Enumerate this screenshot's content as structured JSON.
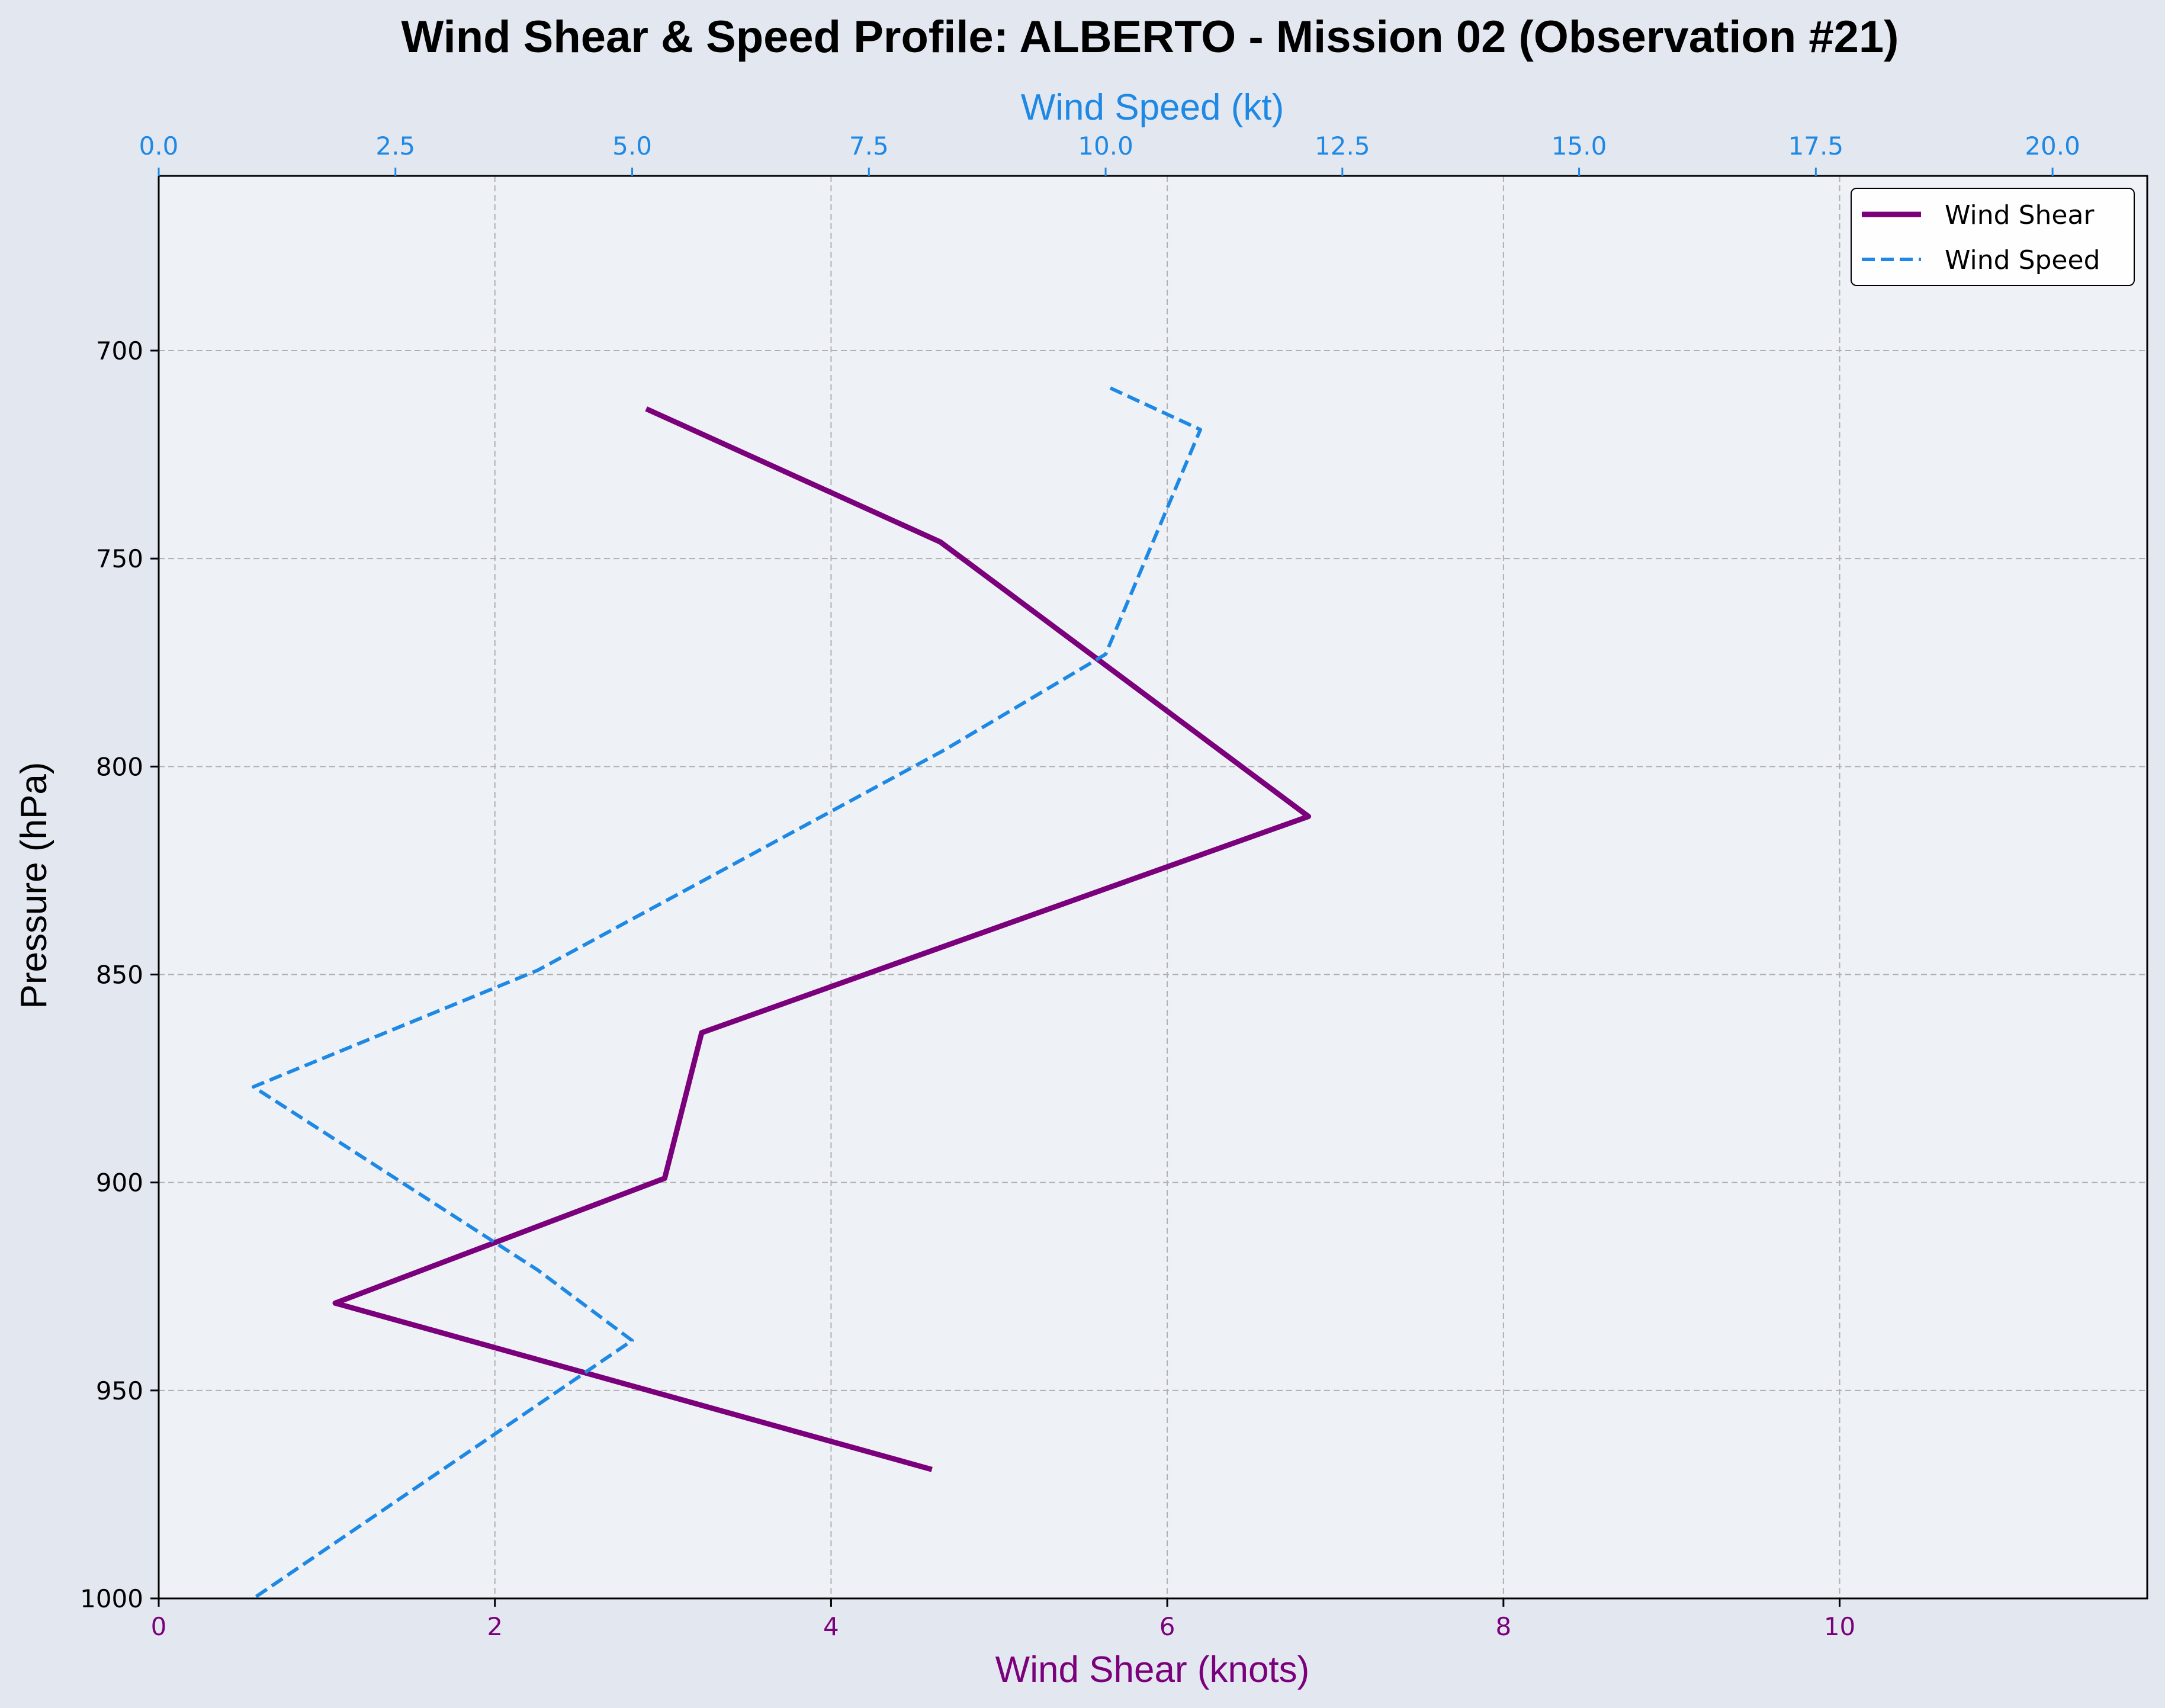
{
  "chart_data": {
    "type": "line",
    "title": "Wind Shear & Speed Profile: ALBERTO - Mission 02 (Observation #21)",
    "xlabel_bottom": "Wind Shear (knots)",
    "xlabel_top": "Wind Speed (kt)",
    "ylabel": "Pressure (hPa)",
    "x_bottom_lim": [
      0,
      11.83
    ],
    "x_top_lim": [
      0,
      21
    ],
    "y_lim": [
      1000,
      658
    ],
    "y_inverted": true,
    "grid": true,
    "legend_position": "top-right",
    "x_bottom_ticks": [
      "0",
      "2",
      "4",
      "6",
      "8",
      "10"
    ],
    "x_bottom_tick_values": [
      0,
      2,
      4,
      6,
      8,
      10
    ],
    "x_top_ticks": [
      "0.0",
      "2.5",
      "5.0",
      "7.5",
      "10.0",
      "12.5",
      "15.0",
      "17.5",
      "20.0"
    ],
    "x_top_tick_values": [
      0,
      2.5,
      5,
      7.5,
      10,
      12.5,
      15,
      17.5,
      20
    ],
    "y_ticks": [
      "700",
      "750",
      "800",
      "850",
      "900",
      "950",
      "1000"
    ],
    "y_tick_values": [
      700,
      750,
      800,
      850,
      900,
      950,
      1000
    ],
    "colors": {
      "shear": "#7b007b",
      "speed": "#1e88e5",
      "plot_bg": "#eef2f6",
      "figure_bg": "#e3e7f0",
      "grid": "#b0b0b0"
    },
    "series": [
      {
        "name": "Wind Shear",
        "axis": "bottom",
        "style": "solid",
        "points": [
          {
            "x": 2.9,
            "y": 714
          },
          {
            "x": 4.65,
            "y": 746
          },
          {
            "x": 6.84,
            "y": 812
          },
          {
            "x": 3.23,
            "y": 864
          },
          {
            "x": 3.01,
            "y": 899
          },
          {
            "x": 1.05,
            "y": 929
          },
          {
            "x": 4.6,
            "y": 969
          }
        ]
      },
      {
        "name": "Wind Speed",
        "axis": "top",
        "style": "dashed",
        "points": [
          {
            "x": 10.05,
            "y": 709
          },
          {
            "x": 11.0,
            "y": 719
          },
          {
            "x": 10.0,
            "y": 773
          },
          {
            "x": 8.3,
            "y": 796
          },
          {
            "x": 4.0,
            "y": 849
          },
          {
            "x": 1.0,
            "y": 877
          },
          {
            "x": 4.0,
            "y": 921
          },
          {
            "x": 5.0,
            "y": 938
          },
          {
            "x": 1.0,
            "y": 1000
          }
        ]
      }
    ]
  }
}
